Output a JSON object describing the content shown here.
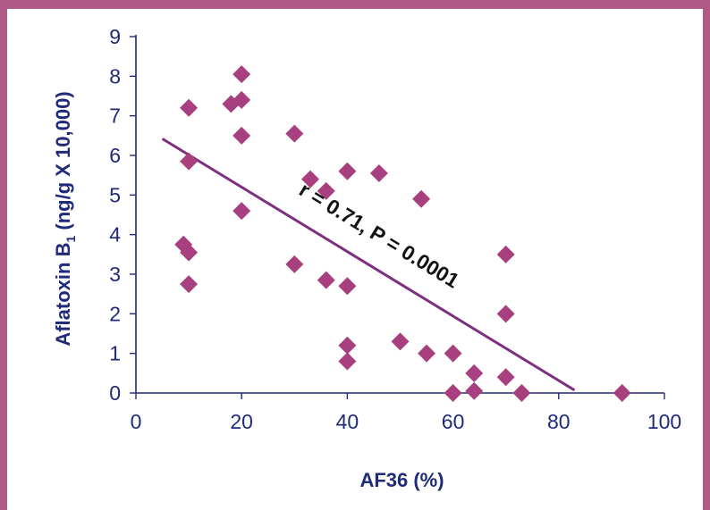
{
  "colors": {
    "frame": "#b05a88",
    "marker": "#a83f7f",
    "line": "#7f2f7f",
    "axis": "#1f2a7a",
    "tick_text": "#1f2a7a",
    "label_text": "#1f2a7a",
    "annotation_text": "#111111"
  },
  "chart_data": {
    "type": "scatter",
    "title": "",
    "xlabel": "AF36 (%)",
    "ylabel_main": "Aflatoxin B",
    "ylabel_sub": "1",
    "ylabel_rest": " (ng/g X 10,000)",
    "xlim": [
      0,
      100
    ],
    "ylim": [
      0,
      9
    ],
    "x_ticks": [
      "0",
      "20",
      "40",
      "60",
      "80",
      "100"
    ],
    "y_ticks": [
      "0",
      "1",
      "2",
      "3",
      "4",
      "5",
      "6",
      "7",
      "8",
      "9"
    ],
    "grid": false,
    "legend": "none",
    "marker": "diamond",
    "points": [
      {
        "x": 10,
        "y": 7.2
      },
      {
        "x": 10,
        "y": 5.85
      },
      {
        "x": 9,
        "y": 3.75
      },
      {
        "x": 10,
        "y": 3.55
      },
      {
        "x": 10,
        "y": 2.75
      },
      {
        "x": 18,
        "y": 7.3
      },
      {
        "x": 20,
        "y": 8.05
      },
      {
        "x": 20,
        "y": 7.4
      },
      {
        "x": 20,
        "y": 6.5
      },
      {
        "x": 20,
        "y": 4.6
      },
      {
        "x": 30,
        "y": 6.55
      },
      {
        "x": 30,
        "y": 3.25
      },
      {
        "x": 33,
        "y": 5.4
      },
      {
        "x": 36,
        "y": 5.1
      },
      {
        "x": 36,
        "y": 2.85
      },
      {
        "x": 40,
        "y": 5.6
      },
      {
        "x": 40,
        "y": 2.7
      },
      {
        "x": 40,
        "y": 1.2
      },
      {
        "x": 40,
        "y": 0.8
      },
      {
        "x": 46,
        "y": 5.55
      },
      {
        "x": 50,
        "y": 1.3
      },
      {
        "x": 54,
        "y": 4.9
      },
      {
        "x": 55,
        "y": 1.0
      },
      {
        "x": 60,
        "y": 1.0
      },
      {
        "x": 60,
        "y": 0.0
      },
      {
        "x": 64,
        "y": 0.5
      },
      {
        "x": 64,
        "y": 0.05
      },
      {
        "x": 70,
        "y": 3.5
      },
      {
        "x": 70,
        "y": 2.0
      },
      {
        "x": 70,
        "y": 0.4
      },
      {
        "x": 73,
        "y": 0.0
      },
      {
        "x": 92,
        "y": 0.0
      }
    ],
    "trendline": {
      "x": [
        5,
        83
      ],
      "y": [
        6.42,
        0.07
      ]
    },
    "annotation": "r  = 0.71, P = 0.0001"
  }
}
